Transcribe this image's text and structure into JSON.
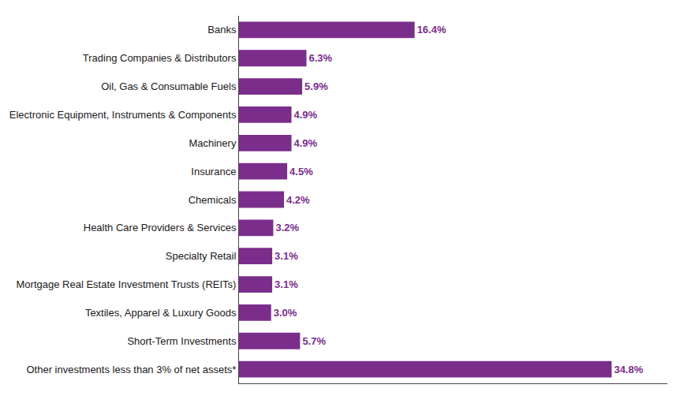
{
  "chart_data": {
    "type": "bar",
    "orientation": "horizontal",
    "categories": [
      "Banks",
      "Trading Companies & Distributors",
      "Oil, Gas & Consumable Fuels",
      "Electronic Equipment, Instruments & Components",
      "Machinery",
      "Insurance",
      "Chemicals",
      "Health Care Providers & Services",
      "Specialty Retail",
      "Mortgage Real Estate Investment Trusts (REITs)",
      "Textiles, Apparel & Luxury Goods",
      "Short-Term Investments",
      "Other investments less than 3% of net assets*"
    ],
    "values": [
      16.4,
      6.3,
      5.9,
      4.9,
      4.9,
      4.5,
      4.2,
      3.2,
      3.1,
      3.1,
      3.0,
      5.7,
      34.8
    ],
    "value_labels": [
      "16.4%",
      "6.3%",
      "5.9%",
      "4.9%",
      "4.9%",
      "4.5%",
      "4.2%",
      "3.2%",
      "3.1%",
      "3.1%",
      "3.0%",
      "5.7%",
      "34.8%"
    ],
    "color": "#7B2D8B",
    "xlim": [
      0,
      40
    ],
    "xticks": [],
    "grid": false,
    "data_labels": true,
    "tick_labels": "y"
  }
}
